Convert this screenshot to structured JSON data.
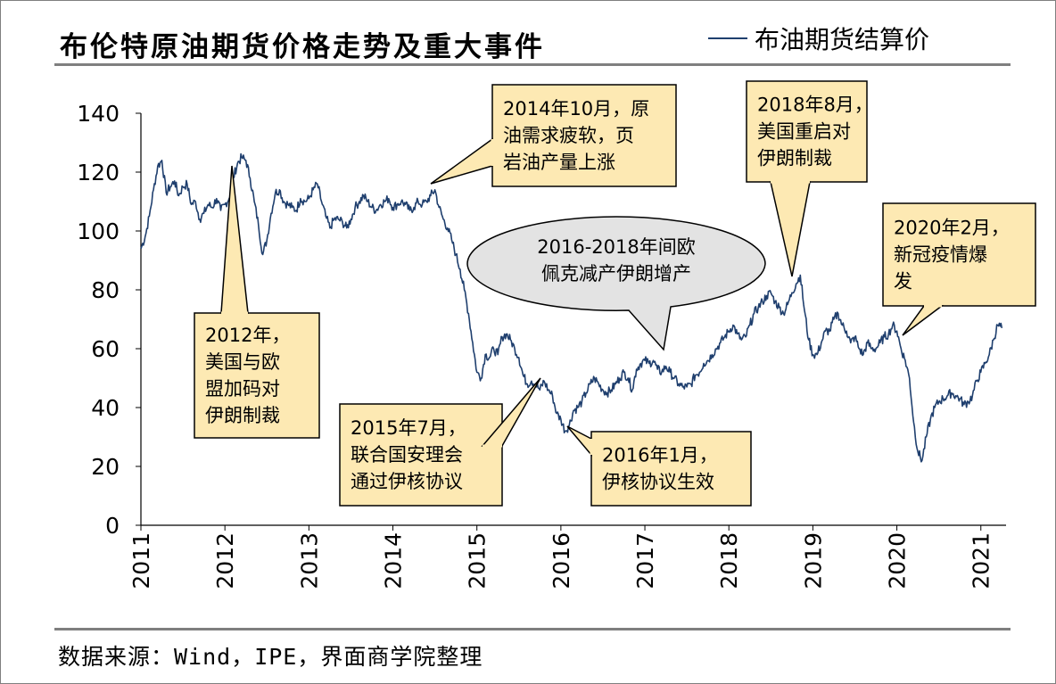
{
  "title": "布伦特原油期货价格走势及重大事件",
  "source": "数据来源：Wind，IPE，界面商学院整理",
  "colors": {
    "series": "#1f3f6e",
    "callout_fill": "#fde9b3",
    "callout_stroke": "#000000",
    "ellipse_fill": "#e3e3e3",
    "rule": "#7f7f7f"
  },
  "chart_data": {
    "type": "line",
    "title": "布伦特原油期货价格走势及重大事件",
    "xlabel": "",
    "ylabel": "",
    "xlim": [
      2011.0,
      2021.3
    ],
    "ylim": [
      0,
      140
    ],
    "yticks": [
      "0",
      "20",
      "40",
      "60",
      "80",
      "100",
      "120",
      "140"
    ],
    "xticks": [
      "2011",
      "2012",
      "2013",
      "2014",
      "2015",
      "2016",
      "2017",
      "2018",
      "2019",
      "2020",
      "2021"
    ],
    "grid": false,
    "legend": "top-right",
    "series": [
      {
        "name": "布油期货结算价",
        "x": [
          2011.0,
          2011.05,
          2011.1,
          2011.15,
          2011.2,
          2011.25,
          2011.3,
          2011.35,
          2011.4,
          2011.45,
          2011.5,
          2011.55,
          2011.6,
          2011.65,
          2011.7,
          2011.75,
          2011.8,
          2011.85,
          2011.9,
          2011.95,
          2012.0,
          2012.05,
          2012.1,
          2012.15,
          2012.2,
          2012.25,
          2012.3,
          2012.35,
          2012.4,
          2012.45,
          2012.5,
          2012.55,
          2012.6,
          2012.65,
          2012.7,
          2012.75,
          2012.8,
          2012.85,
          2012.9,
          2012.95,
          2013.0,
          2013.05,
          2013.1,
          2013.15,
          2013.2,
          2013.25,
          2013.3,
          2013.35,
          2013.4,
          2013.45,
          2013.5,
          2013.55,
          2013.6,
          2013.65,
          2013.7,
          2013.75,
          2013.8,
          2013.85,
          2013.9,
          2013.95,
          2014.0,
          2014.05,
          2014.1,
          2014.15,
          2014.2,
          2014.25,
          2014.3,
          2014.35,
          2014.4,
          2014.45,
          2014.5,
          2014.55,
          2014.6,
          2014.65,
          2014.7,
          2014.75,
          2014.8,
          2014.85,
          2014.9,
          2014.95,
          2015.0,
          2015.05,
          2015.1,
          2015.15,
          2015.2,
          2015.25,
          2015.3,
          2015.35,
          2015.4,
          2015.45,
          2015.5,
          2015.55,
          2015.6,
          2015.65,
          2015.7,
          2015.75,
          2015.8,
          2015.85,
          2015.9,
          2015.95,
          2016.0,
          2016.05,
          2016.1,
          2016.15,
          2016.2,
          2016.25,
          2016.3,
          2016.35,
          2016.4,
          2016.45,
          2016.5,
          2016.55,
          2016.6,
          2016.65,
          2016.7,
          2016.75,
          2016.8,
          2016.85,
          2016.9,
          2016.95,
          2017.0,
          2017.05,
          2017.1,
          2017.15,
          2017.2,
          2017.25,
          2017.3,
          2017.35,
          2017.4,
          2017.45,
          2017.5,
          2017.55,
          2017.6,
          2017.65,
          2017.7,
          2017.75,
          2017.8,
          2017.85,
          2017.9,
          2017.95,
          2018.0,
          2018.05,
          2018.1,
          2018.15,
          2018.2,
          2018.25,
          2018.3,
          2018.35,
          2018.4,
          2018.45,
          2018.5,
          2018.55,
          2018.6,
          2018.65,
          2018.7,
          2018.75,
          2018.8,
          2018.85,
          2018.9,
          2018.95,
          2019.0,
          2019.05,
          2019.1,
          2019.15,
          2019.2,
          2019.25,
          2019.3,
          2019.35,
          2019.4,
          2019.45,
          2019.5,
          2019.55,
          2019.6,
          2019.65,
          2019.7,
          2019.75,
          2019.8,
          2019.85,
          2019.9,
          2019.95,
          2020.0,
          2020.05,
          2020.1,
          2020.15,
          2020.2,
          2020.25,
          2020.3,
          2020.35,
          2020.4,
          2020.45,
          2020.5,
          2020.55,
          2020.6,
          2020.65,
          2020.7,
          2020.75,
          2020.8,
          2020.85,
          2020.9,
          2020.95,
          2021.0,
          2021.05,
          2021.1,
          2021.15,
          2021.2,
          2021.25
        ],
        "y": [
          94,
          98,
          105,
          114,
          122,
          124,
          113,
          115,
          117,
          112,
          115,
          116,
          109,
          110,
          104,
          106,
          109,
          108,
          111,
          107,
          109,
          111,
          118,
          123,
          125,
          124,
          118,
          110,
          102,
          92,
          97,
          106,
          113,
          114,
          110,
          109,
          108,
          107,
          111,
          110,
          111,
          114,
          116,
          110,
          105,
          101,
          104,
          104,
          103,
          101,
          104,
          108,
          110,
          112,
          110,
          108,
          107,
          109,
          110,
          111,
          108,
          109,
          110,
          109,
          107,
          108,
          110,
          109,
          110,
          112,
          114,
          108,
          104,
          101,
          97,
          92,
          87,
          80,
          72,
          62,
          52,
          50,
          58,
          57,
          60,
          58,
          64,
          65,
          63,
          60,
          57,
          51,
          48,
          49,
          48,
          46,
          49,
          46,
          44,
          38,
          36,
          32,
          34,
          39,
          40,
          42,
          45,
          48,
          50,
          48,
          46,
          45,
          46,
          48,
          50,
          52,
          50,
          46,
          53,
          55,
          56,
          55,
          56,
          53,
          52,
          54,
          52,
          50,
          48,
          47,
          47,
          48,
          51,
          52,
          55,
          56,
          58,
          60,
          62,
          64,
          66,
          68,
          65,
          63,
          64,
          68,
          72,
          74,
          76,
          78,
          79,
          76,
          74,
          72,
          75,
          79,
          82,
          85,
          73,
          63,
          58,
          58,
          62,
          66,
          66,
          70,
          72,
          68,
          66,
          62,
          64,
          60,
          58,
          62,
          60,
          60,
          62,
          64,
          65,
          68,
          66,
          60,
          56,
          50,
          35,
          25,
          22,
          30,
          36,
          40,
          42,
          43,
          44,
          45,
          44,
          43,
          41,
          42,
          44,
          49,
          52,
          55,
          58,
          63,
          68,
          67
        ]
      }
    ]
  },
  "annotations": [
    {
      "id": "a2012",
      "lines": [
        "2012年，",
        "美国与欧",
        "盟加码对",
        "伊朗制裁"
      ]
    },
    {
      "id": "a2014",
      "lines": [
        "2014年10月，原",
        "油需求疲软，页",
        "岩油产量上涨"
      ]
    },
    {
      "id": "a2015",
      "lines": [
        "2015年7月，",
        "联合国安理会",
        "通过伊核协议"
      ]
    },
    {
      "id": "a2016",
      "lines": [
        "2016年1月，",
        "伊核协议生效"
      ]
    },
    {
      "id": "a2016b",
      "lines": [
        "2016-2018年间欧",
        "佩克减产伊朗增产"
      ]
    },
    {
      "id": "a2018",
      "lines": [
        "2018年8月，",
        "美国重启对",
        "伊朗制裁"
      ]
    },
    {
      "id": "a2020",
      "lines": [
        "2020年2月，",
        "新冠疫情爆",
        "发"
      ]
    }
  ]
}
